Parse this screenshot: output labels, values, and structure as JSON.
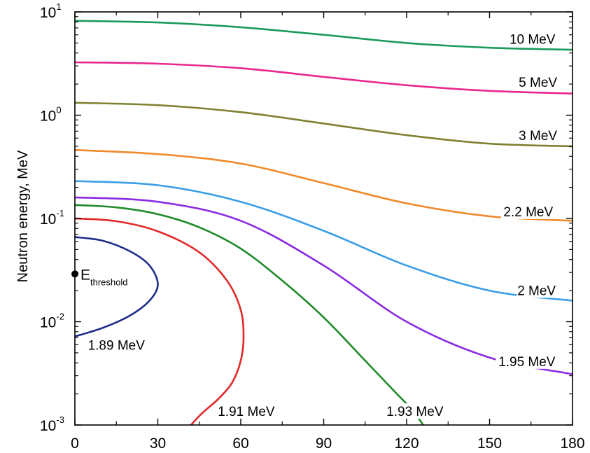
{
  "chart_data": {
    "type": "line",
    "title": "",
    "xlabel": "",
    "ylabel": "Neutron energy, MeV",
    "xlim": [
      0,
      180
    ],
    "ylim": [
      0.001,
      10
    ],
    "yscale": "log",
    "x_ticks": [
      {
        "value": 0,
        "label": "0"
      },
      {
        "value": 30,
        "label": "30"
      },
      {
        "value": 60,
        "label": "60"
      },
      {
        "value": 90,
        "label": "90"
      },
      {
        "value": 120,
        "label": "120"
      },
      {
        "value": 150,
        "label": "150"
      },
      {
        "value": 180,
        "label": "180"
      }
    ],
    "y_ticks": [
      {
        "value": 0.001,
        "base": "10",
        "exp": "-3"
      },
      {
        "value": 0.01,
        "base": "10",
        "exp": "-2"
      },
      {
        "value": 0.1,
        "base": "10",
        "exp": "-1"
      },
      {
        "value": 1,
        "base": "10",
        "exp": "0"
      },
      {
        "value": 10,
        "base": "10",
        "exp": "1"
      }
    ],
    "grid": false,
    "series": [
      {
        "name": "10 MeV",
        "color": "#1a9a5a",
        "x": [
          0,
          30,
          60,
          90,
          120,
          150,
          180
        ],
        "y": [
          8.2,
          7.9,
          7.1,
          6.0,
          5.0,
          4.5,
          4.3
        ]
      },
      {
        "name": "5 MeV",
        "color": "#e8278f",
        "x": [
          0,
          30,
          60,
          90,
          120,
          150,
          180
        ],
        "y": [
          3.25,
          3.15,
          2.85,
          2.35,
          1.95,
          1.72,
          1.62
        ]
      },
      {
        "name": "3 MeV",
        "color": "#7f8030",
        "x": [
          0,
          30,
          60,
          90,
          120,
          150,
          180
        ],
        "y": [
          1.32,
          1.25,
          1.07,
          0.83,
          0.64,
          0.53,
          0.5
        ]
      },
      {
        "name": "2.2 MeV",
        "color": "#f08a2b",
        "x": [
          0,
          30,
          60,
          90,
          120,
          150,
          180
        ],
        "y": [
          0.46,
          0.42,
          0.34,
          0.22,
          0.14,
          0.105,
          0.095
        ]
      },
      {
        "name": "2 MeV",
        "color": "#3a9ee8",
        "x": [
          0,
          30,
          60,
          90,
          120,
          150,
          180
        ],
        "y": [
          0.23,
          0.21,
          0.145,
          0.076,
          0.035,
          0.02,
          0.016
        ]
      },
      {
        "name": "1.95 MeV",
        "color": "#8a2be2",
        "x": [
          0,
          30,
          60,
          90,
          120,
          150,
          180
        ],
        "y": [
          0.16,
          0.145,
          0.095,
          0.035,
          0.01,
          0.0045,
          0.0031
        ]
      },
      {
        "name": "1.93 MeV",
        "color": "#1f8a2a",
        "x": [
          0,
          15,
          30,
          45,
          60,
          75,
          90,
          105,
          115,
          122,
          126
        ],
        "y": [
          0.135,
          0.128,
          0.11,
          0.082,
          0.051,
          0.025,
          0.011,
          0.0042,
          0.0022,
          0.0014,
          0.001
        ]
      },
      {
        "name": "1.91 MeV",
        "color": "#e02a2a",
        "x": [
          0,
          15,
          30,
          45,
          55,
          60,
          61,
          60,
          57,
          52,
          46,
          42
        ],
        "y": [
          0.1,
          0.094,
          0.075,
          0.047,
          0.025,
          0.013,
          0.007,
          0.0042,
          0.0026,
          0.0018,
          0.0013,
          0.001
        ]
      },
      {
        "name": "1.89 MeV",
        "color": "#1f2d8a",
        "x": [
          0,
          10,
          20,
          27,
          30,
          27,
          20,
          10,
          0
        ],
        "y": [
          0.066,
          0.061,
          0.048,
          0.035,
          0.023,
          0.016,
          0.0115,
          0.0087,
          0.0072
        ]
      }
    ],
    "curve_labels": [
      {
        "text": "10 MeV",
        "x": 165.5,
        "y": 5.15
      },
      {
        "text": "5 MeV",
        "x": 167.5,
        "y": 1.97
      },
      {
        "text": "3 MeV",
        "x": 167.5,
        "y": 0.6
      },
      {
        "text": "2.2 MeV",
        "x": 164,
        "y": 0.11
      },
      {
        "text": "2 MeV",
        "x": 167,
        "y": 0.019
      },
      {
        "text": "1.95 MeV",
        "x": 163.5,
        "y": 0.0039
      },
      {
        "text": "1.93 MeV",
        "x": 123,
        "y": 0.00128
      },
      {
        "text": "1.91 MeV",
        "x": 62,
        "y": 0.00128
      },
      {
        "text": "1.89 MeV",
        "x": 15,
        "y": 0.0056
      }
    ],
    "threshold": {
      "base": "E",
      "sub": "threshold",
      "x": 0,
      "y": 0.029
    }
  }
}
